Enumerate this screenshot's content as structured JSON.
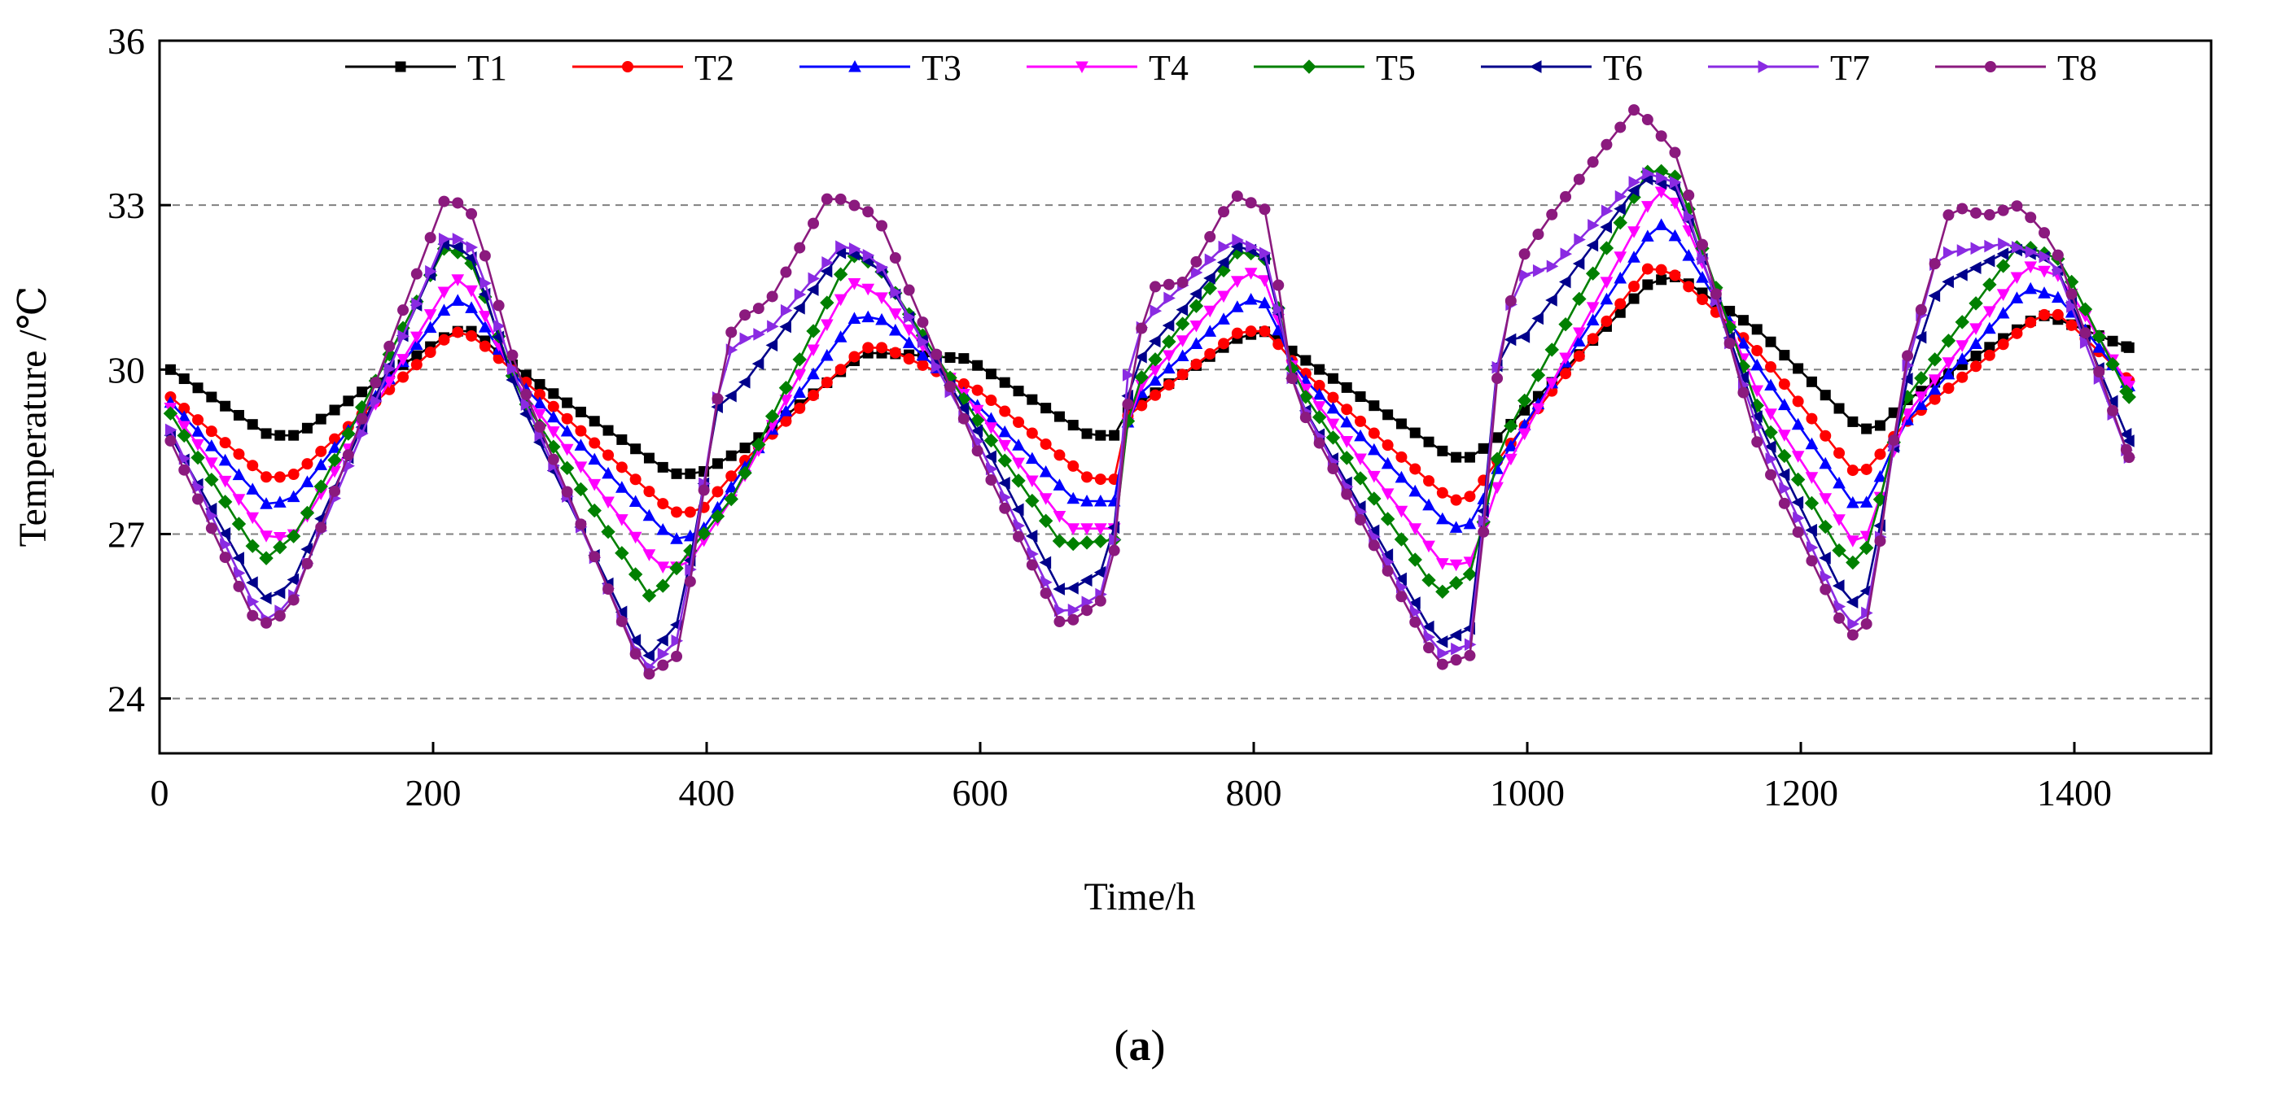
{
  "chart_data": {
    "type": "line",
    "title": "",
    "xlabel": "Time/h",
    "ylabel": "Temperature /℃",
    "caption_open": "(",
    "caption_letter": "a",
    "caption_close": ")",
    "xlim": [
      0,
      1500
    ],
    "ylim": [
      23,
      36
    ],
    "xticks": [
      0,
      200,
      400,
      600,
      800,
      1000,
      1200,
      1400
    ],
    "yticks": [
      24,
      27,
      30,
      33,
      36
    ],
    "ytick_labels": [
      "24",
      "27",
      "30",
      "33",
      "36"
    ],
    "xtick_labels": [
      "0",
      "200",
      "400",
      "600",
      "800",
      "1000",
      "1200",
      "1400"
    ],
    "grid": "horizontal dashed",
    "legend_position": "top",
    "series": [
      {
        "name": "T1",
        "color": "#000000",
        "marker": "square",
        "points": [
          [
            8,
            30.0
          ],
          [
            80,
            28.8
          ],
          [
            100,
            28.8
          ],
          [
            215,
            30.7
          ],
          [
            230,
            30.7
          ],
          [
            262,
            30.0
          ],
          [
            375,
            28.1
          ],
          [
            395,
            28.1
          ],
          [
            430,
            28.6
          ],
          [
            515,
            30.3
          ],
          [
            530,
            30.3
          ],
          [
            590,
            30.2
          ],
          [
            680,
            28.8
          ],
          [
            700,
            28.8
          ],
          [
            705,
            29.2
          ],
          [
            790,
            30.6
          ],
          [
            810,
            30.7
          ],
          [
            820,
            30.5
          ],
          [
            830,
            30.3
          ],
          [
            945,
            28.4
          ],
          [
            960,
            28.4
          ],
          [
            980,
            28.8
          ],
          [
            1090,
            31.6
          ],
          [
            1110,
            31.7
          ],
          [
            1170,
            30.7
          ],
          [
            1240,
            29.0
          ],
          [
            1250,
            28.9
          ],
          [
            1260,
            29.0
          ],
          [
            1275,
            29.4
          ],
          [
            1375,
            31.0
          ],
          [
            1390,
            30.9
          ],
          [
            1440,
            30.4
          ]
        ]
      },
      {
        "name": "T2",
        "color": "#ff0000",
        "marker": "circle",
        "points": [
          [
            8,
            29.5
          ],
          [
            80,
            28.0
          ],
          [
            100,
            28.1
          ],
          [
            215,
            30.7
          ],
          [
            230,
            30.6
          ],
          [
            262,
            29.9
          ],
          [
            375,
            27.4
          ],
          [
            395,
            27.4
          ],
          [
            430,
            28.4
          ],
          [
            515,
            30.4
          ],
          [
            530,
            30.4
          ],
          [
            600,
            29.6
          ],
          [
            680,
            28.0
          ],
          [
            700,
            28.0
          ],
          [
            705,
            29.1
          ],
          [
            790,
            30.7
          ],
          [
            810,
            30.7
          ],
          [
            830,
            30.1
          ],
          [
            945,
            27.6
          ],
          [
            960,
            27.7
          ],
          [
            980,
            28.4
          ],
          [
            1090,
            31.9
          ],
          [
            1110,
            31.7
          ],
          [
            1170,
            30.3
          ],
          [
            1240,
            28.1
          ],
          [
            1250,
            28.2
          ],
          [
            1275,
            29.0
          ],
          [
            1375,
            31.0
          ],
          [
            1390,
            31.0
          ],
          [
            1440,
            29.8
          ]
        ]
      },
      {
        "name": "T3",
        "color": "#0000ff",
        "marker": "triangle-up",
        "points": [
          [
            8,
            29.4
          ],
          [
            80,
            27.5
          ],
          [
            100,
            27.7
          ],
          [
            215,
            31.3
          ],
          [
            230,
            31.1
          ],
          [
            262,
            29.8
          ],
          [
            375,
            26.9
          ],
          [
            395,
            27.0
          ],
          [
            430,
            28.3
          ],
          [
            510,
            31.0
          ],
          [
            530,
            30.9
          ],
          [
            600,
            29.3
          ],
          [
            670,
            27.6
          ],
          [
            700,
            27.6
          ],
          [
            710,
            29.4
          ],
          [
            795,
            31.3
          ],
          [
            810,
            31.2
          ],
          [
            830,
            30.0
          ],
          [
            945,
            27.1
          ],
          [
            960,
            27.2
          ],
          [
            980,
            28.3
          ],
          [
            1095,
            32.7
          ],
          [
            1110,
            32.4
          ],
          [
            1170,
            30.0
          ],
          [
            1240,
            27.5
          ],
          [
            1250,
            27.6
          ],
          [
            1275,
            29.0
          ],
          [
            1365,
            31.5
          ],
          [
            1390,
            31.3
          ],
          [
            1440,
            29.7
          ]
        ]
      },
      {
        "name": "T4",
        "color": "#ff00ff",
        "marker": "triangle-down",
        "points": [
          [
            8,
            29.3
          ],
          [
            80,
            26.9
          ],
          [
            100,
            27.0
          ],
          [
            215,
            31.7
          ],
          [
            230,
            31.4
          ],
          [
            262,
            29.7
          ],
          [
            365,
            26.4
          ],
          [
            385,
            26.4
          ],
          [
            420,
            27.7
          ],
          [
            505,
            31.6
          ],
          [
            525,
            31.4
          ],
          [
            600,
            29.2
          ],
          [
            665,
            27.1
          ],
          [
            700,
            27.1
          ],
          [
            710,
            29.5
          ],
          [
            795,
            31.8
          ],
          [
            810,
            31.6
          ],
          [
            830,
            29.9
          ],
          [
            940,
            26.4
          ],
          [
            960,
            26.5
          ],
          [
            980,
            28.0
          ],
          [
            1095,
            33.3
          ],
          [
            1110,
            33.0
          ],
          [
            1170,
            29.5
          ],
          [
            1240,
            26.8
          ],
          [
            1250,
            27.0
          ],
          [
            1275,
            29.1
          ],
          [
            1365,
            31.9
          ],
          [
            1390,
            31.7
          ],
          [
            1440,
            29.7
          ]
        ]
      },
      {
        "name": "T5",
        "color": "#008000",
        "marker": "diamond",
        "points": [
          [
            8,
            29.2
          ],
          [
            75,
            26.5
          ],
          [
            100,
            27.0
          ],
          [
            210,
            32.3
          ],
          [
            230,
            31.9
          ],
          [
            262,
            29.6
          ],
          [
            360,
            25.8
          ],
          [
            385,
            26.6
          ],
          [
            420,
            27.7
          ],
          [
            505,
            32.1
          ],
          [
            525,
            31.9
          ],
          [
            600,
            29.0
          ],
          [
            660,
            26.8
          ],
          [
            700,
            26.9
          ],
          [
            710,
            29.6
          ],
          [
            790,
            32.2
          ],
          [
            810,
            32.0
          ],
          [
            830,
            29.8
          ],
          [
            935,
            25.9
          ],
          [
            960,
            26.3
          ],
          [
            980,
            28.6
          ],
          [
            1090,
            33.7
          ],
          [
            1110,
            33.5
          ],
          [
            1170,
            29.2
          ],
          [
            1235,
            26.4
          ],
          [
            1250,
            26.8
          ],
          [
            1275,
            29.4
          ],
          [
            1360,
            32.3
          ],
          [
            1390,
            32.0
          ],
          [
            1440,
            29.5
          ]
        ]
      },
      {
        "name": "T6",
        "color": "#00008b",
        "marker": "triangle-left",
        "points": [
          [
            8,
            28.8
          ],
          [
            75,
            25.8
          ],
          [
            95,
            26.0
          ],
          [
            210,
            32.4
          ],
          [
            230,
            32.0
          ],
          [
            262,
            29.5
          ],
          [
            355,
            24.7
          ],
          [
            380,
            25.4
          ],
          [
            410,
            29.6
          ],
          [
            420,
            29.5
          ],
          [
            500,
            32.2
          ],
          [
            525,
            31.9
          ],
          [
            600,
            28.8
          ],
          [
            660,
            25.9
          ],
          [
            695,
            26.4
          ],
          [
            710,
            30.0
          ],
          [
            790,
            32.3
          ],
          [
            810,
            32.0
          ],
          [
            830,
            29.6
          ],
          [
            935,
            25.0
          ],
          [
            960,
            25.3
          ],
          [
            980,
            30.6
          ],
          [
            995,
            30.5
          ],
          [
            1085,
            33.5
          ],
          [
            1110,
            33.3
          ],
          [
            1170,
            29.0
          ],
          [
            1235,
            25.7
          ],
          [
            1250,
            26.0
          ],
          [
            1275,
            29.6
          ],
          [
            1300,
            31.5
          ],
          [
            1355,
            32.2
          ],
          [
            1385,
            32.0
          ],
          [
            1440,
            28.7
          ]
        ]
      },
      {
        "name": "T7",
        "color": "#8a2be2",
        "marker": "triangle-right",
        "points": [
          [
            8,
            28.9
          ],
          [
            75,
            25.4
          ],
          [
            95,
            25.7
          ],
          [
            210,
            32.5
          ],
          [
            230,
            32.2
          ],
          [
            262,
            29.7
          ],
          [
            355,
            24.5
          ],
          [
            380,
            25.1
          ],
          [
            410,
            29.8
          ],
          [
            420,
            30.5
          ],
          [
            445,
            30.7
          ],
          [
            500,
            32.3
          ],
          [
            525,
            32.0
          ],
          [
            600,
            28.6
          ],
          [
            660,
            25.5
          ],
          [
            695,
            26.0
          ],
          [
            710,
            30.5
          ],
          [
            725,
            31.0
          ],
          [
            785,
            32.4
          ],
          [
            810,
            32.1
          ],
          [
            830,
            29.6
          ],
          [
            935,
            24.8
          ],
          [
            960,
            25.0
          ],
          [
            980,
            30.6
          ],
          [
            995,
            31.7
          ],
          [
            1020,
            31.9
          ],
          [
            1085,
            33.6
          ],
          [
            1110,
            33.4
          ],
          [
            1170,
            28.8
          ],
          [
            1235,
            25.3
          ],
          [
            1250,
            25.6
          ],
          [
            1275,
            29.8
          ],
          [
            1300,
            32.1
          ],
          [
            1350,
            32.3
          ],
          [
            1385,
            32.0
          ],
          [
            1440,
            28.4
          ]
        ]
      },
      {
        "name": "T8",
        "color": "#8b1a7e",
        "marker": "circle",
        "points": [
          [
            8,
            28.7
          ],
          [
            72,
            25.3
          ],
          [
            95,
            25.6
          ],
          [
            210,
            33.2
          ],
          [
            230,
            32.8
          ],
          [
            262,
            29.9
          ],
          [
            355,
            24.4
          ],
          [
            380,
            24.8
          ],
          [
            410,
            29.8
          ],
          [
            420,
            30.9
          ],
          [
            445,
            31.2
          ],
          [
            490,
            33.2
          ],
          [
            525,
            32.8
          ],
          [
            600,
            28.4
          ],
          [
            660,
            25.3
          ],
          [
            695,
            25.9
          ],
          [
            710,
            29.9
          ],
          [
            725,
            31.5
          ],
          [
            750,
            31.6
          ],
          [
            785,
            33.2
          ],
          [
            810,
            32.9
          ],
          [
            830,
            29.5
          ],
          [
            935,
            24.6
          ],
          [
            960,
            24.8
          ],
          [
            980,
            30.4
          ],
          [
            995,
            32.0
          ],
          [
            1020,
            32.9
          ],
          [
            1080,
            34.8
          ],
          [
            1110,
            33.9
          ],
          [
            1170,
            28.5
          ],
          [
            1235,
            25.1
          ],
          [
            1250,
            25.4
          ],
          [
            1275,
            30.0
          ],
          [
            1300,
            32.1
          ],
          [
            1310,
            33.0
          ],
          [
            1335,
            32.8
          ],
          [
            1360,
            33.0
          ],
          [
            1385,
            32.3
          ],
          [
            1440,
            28.4
          ]
        ]
      }
    ]
  }
}
